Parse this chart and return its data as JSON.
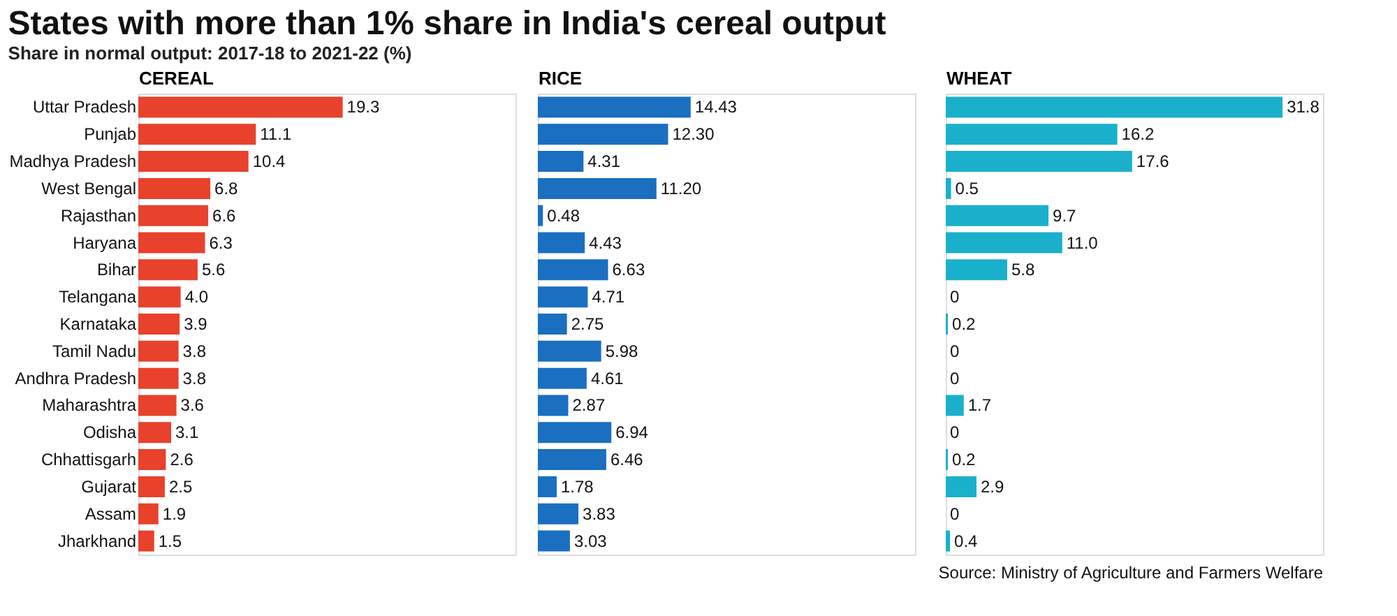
{
  "chart_data": [
    {
      "type": "bar",
      "orientation": "horizontal",
      "title": "States with more than 1% share in India's cereal output",
      "subtitle": "Share in normal output: 2017-18 to 2021-22 (%)",
      "xlabel": "CEREAL",
      "tick_labels": "y",
      "grid": false,
      "categories": [
        "Uttar Pradesh",
        "Punjab",
        "Madhya Pradesh",
        "West Bengal",
        "Rajasthan",
        "Haryana",
        "Bihar",
        "Telangana",
        "Karnataka",
        "Tamil Nadu",
        "Andhra Pradesh",
        "Maharashtra",
        "Odisha",
        "Chhattisgarh",
        "Gujarat",
        "Assam",
        "Jharkhand"
      ],
      "values": [
        19.3,
        11.1,
        10.4,
        6.8,
        6.6,
        6.3,
        5.6,
        4.0,
        3.9,
        3.8,
        3.8,
        3.6,
        3.1,
        2.6,
        2.5,
        1.9,
        1.5
      ],
      "value_labels": [
        "19.3",
        "11.1",
        "10.4",
        "6.8",
        "6.6",
        "6.3",
        "5.6",
        "4.0",
        "3.9",
        "3.8",
        "3.8",
        "3.6",
        "3.1",
        "2.6",
        "2.5",
        "1.9",
        "1.5"
      ],
      "color": "#e8412c"
    },
    {
      "type": "bar",
      "orientation": "horizontal",
      "xlabel": "RICE",
      "tick_labels": false,
      "grid": false,
      "categories": [
        null,
        null,
        null,
        null,
        null,
        null,
        null,
        null,
        null,
        null,
        null,
        null,
        null,
        null,
        null,
        null,
        null
      ],
      "values": [
        14.43,
        12.3,
        4.31,
        11.2,
        0.48,
        4.43,
        6.63,
        4.71,
        2.75,
        5.98,
        4.61,
        2.87,
        6.94,
        6.46,
        1.78,
        3.83,
        3.03
      ],
      "value_labels": [
        "14.43",
        "12.30",
        "4.31",
        "11.20",
        "0.48",
        "4.43",
        "6.63",
        "4.71",
        "2.75",
        "5.98",
        "4.61",
        "2.87",
        "6.94",
        "6.46",
        "1.78",
        "3.83",
        "3.03"
      ],
      "color": "#1a6fc0"
    },
    {
      "type": "bar",
      "orientation": "horizontal",
      "xlabel": "WHEAT",
      "tick_labels": false,
      "grid": false,
      "categories": [
        null,
        null,
        null,
        null,
        null,
        null,
        null,
        null,
        null,
        null,
        null,
        null,
        null,
        null,
        null,
        null,
        null
      ],
      "values": [
        31.8,
        16.2,
        17.6,
        0.5,
        9.7,
        11.0,
        5.8,
        0,
        0.2,
        0,
        0,
        1.7,
        0,
        0.2,
        2.9,
        0,
        0.4
      ],
      "value_labels": [
        "31.8",
        "16.2",
        "17.6",
        "0.5",
        "9.7",
        "11.0",
        "5.8",
        "0",
        "0.2",
        "0",
        "0",
        "1.7",
        "0",
        "0.2",
        "2.9",
        "0",
        "0.4"
      ],
      "color": "#1ab0cc",
      "annotations": [
        "Source: Ministry of Agriculture and Farmers Welfare"
      ]
    }
  ]
}
